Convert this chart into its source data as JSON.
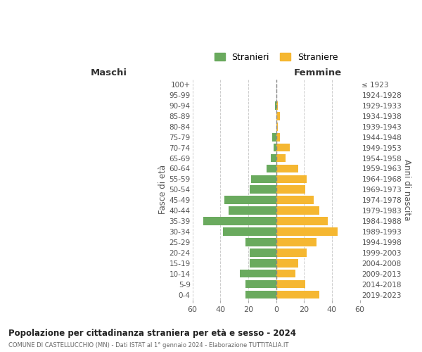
{
  "age_groups": [
    "0-4",
    "5-9",
    "10-14",
    "15-19",
    "20-24",
    "25-29",
    "30-34",
    "35-39",
    "40-44",
    "45-49",
    "50-54",
    "55-59",
    "60-64",
    "65-69",
    "70-74",
    "75-79",
    "80-84",
    "85-89",
    "90-94",
    "95-99",
    "100+"
  ],
  "birth_years": [
    "2019-2023",
    "2014-2018",
    "2009-2013",
    "2004-2008",
    "1999-2003",
    "1994-1998",
    "1989-1993",
    "1984-1988",
    "1979-1983",
    "1974-1978",
    "1969-1973",
    "1964-1968",
    "1959-1963",
    "1954-1958",
    "1949-1953",
    "1944-1948",
    "1939-1943",
    "1934-1938",
    "1929-1933",
    "1924-1928",
    "≤ 1923"
  ],
  "males": [
    22,
    22,
    26,
    19,
    19,
    22,
    38,
    52,
    34,
    37,
    19,
    18,
    7,
    4,
    2,
    3,
    0,
    0,
    1,
    0,
    0
  ],
  "females": [
    31,
    21,
    14,
    16,
    22,
    29,
    44,
    37,
    31,
    27,
    21,
    22,
    16,
    7,
    10,
    3,
    1,
    3,
    1,
    0,
    0
  ],
  "male_color": "#6aaa5e",
  "female_color": "#f5b731",
  "title": "Popolazione per cittadinanza straniera per età e sesso - 2024",
  "subtitle": "COMUNE DI CASTELLUCCHIO (MN) - Dati ISTAT al 1° gennaio 2024 - Elaborazione TUTTITALIA.IT",
  "ylabel_left": "Fasce di età",
  "ylabel_right": "Anni di nascita",
  "xlabel_left": "Maschi",
  "xlabel_right": "Femmine",
  "legend_male": "Stranieri",
  "legend_female": "Straniere",
  "xlim": 60,
  "background_color": "#ffffff",
  "grid_color": "#cccccc"
}
